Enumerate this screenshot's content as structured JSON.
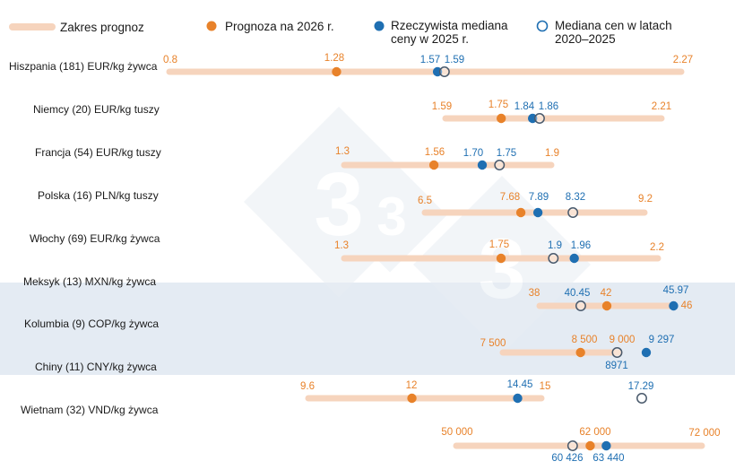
{
  "colors": {
    "range": "#f6d4bd",
    "forecast": "#e8822a",
    "actual": "#1f6fb2",
    "median_stroke": "#1f6fb2",
    "highlight": "#e4ebf3",
    "label_dark": "#1a1a1a"
  },
  "legend": {
    "range": "Zakres prognoz",
    "forecast": "Prognoza na 2026 r.",
    "actual_line1": "Rzeczywista mediana",
    "actual_line2": "ceny w 2025 r.",
    "median_line1": "Mediana cen w latach",
    "median_line2": "2020–2025"
  },
  "row_labels": [
    "Hiszpania (181) EUR/kg żywca",
    "Niemcy (20) EUR/kg tuszy",
    "Francja (54) EUR/kg tuszy",
    "Polska (16) PLN/kg tuszy",
    "Włochy (69) EUR/kg żywca",
    "Meksyk (13) MXN/kg żywca",
    "Kolumbia (9) COP/kg żywca",
    "Chiny (11) CNY/kg żywca",
    "Wietnam (32) VND/kg żywca"
  ],
  "chart_data": {
    "type": "range_dot",
    "series_names": [
      "Zakres prognoz",
      "Prognoza na 2026 r.",
      "Rzeczywista mediana ceny w 2025 r.",
      "Mediana cen w latach 2020–2025"
    ],
    "rows": [
      {
        "min": 0.8,
        "max": 2.27,
        "forecast": 1.28,
        "actual": 1.57,
        "median": 1.59,
        "min_label": "0.8",
        "max_label": "2.27",
        "forecast_label": "1.28",
        "actual_label": "1.57",
        "median_label": "1.59"
      },
      {
        "min": 1.59,
        "max": 2.21,
        "forecast": 1.75,
        "actual": 1.84,
        "median": 1.86,
        "min_label": "1.59",
        "max_label": "2.21",
        "forecast_label": "1.75",
        "actual_label": "1.84",
        "median_label": "1.86"
      },
      {
        "min": 1.3,
        "max": 1.9,
        "forecast": 1.56,
        "actual": 1.7,
        "median": 1.75,
        "min_label": "1.3",
        "max_label": "1.9",
        "forecast_label": "1.56",
        "actual_label": "1.70",
        "median_label": "1.75"
      },
      {
        "min": 6.5,
        "max": 9.2,
        "forecast": 7.68,
        "actual": 7.89,
        "median": 8.32,
        "min_label": "6.5",
        "max_label": "9.2",
        "forecast_label": "7.68",
        "actual_label": "7.89",
        "median_label": "8.32"
      },
      {
        "min": 1.3,
        "max": 2.2,
        "forecast": 1.75,
        "actual": 1.96,
        "median": 1.9,
        "min_label": "1.3",
        "max_label": "2.2",
        "forecast_label": "1.75",
        "actual_label": "1.96",
        "median_label": "1.9"
      },
      {
        "min": 38,
        "max": 46,
        "forecast": 42,
        "actual": 45.97,
        "median": 40.45,
        "min_label": "38",
        "max_label": "46",
        "forecast_label": "42",
        "actual_label": "45.97",
        "median_label": "40.45"
      },
      {
        "min": 7500,
        "max": 9000,
        "forecast": 8500,
        "actual": 9297,
        "median": 8971,
        "min_label": "7 500",
        "max_label": "9 000",
        "forecast_label": "8 500",
        "actual_label": "9 297",
        "median_label": "8971"
      },
      {
        "min": 9.6,
        "max": 15,
        "forecast": 12,
        "actual": 14.45,
        "median": 17.29,
        "min_label": "9.6",
        "max_label": "15",
        "forecast_label": "12",
        "actual_label": "14.45",
        "median_label": "17.29"
      },
      {
        "min": 50000,
        "max": 72000,
        "forecast": 62000,
        "actual": 63440,
        "median": 60426,
        "min_label": "50 000",
        "max_label": "72 000",
        "forecast_label": "62 000",
        "actual_label": "63 440",
        "median_label": "60 426"
      }
    ]
  }
}
